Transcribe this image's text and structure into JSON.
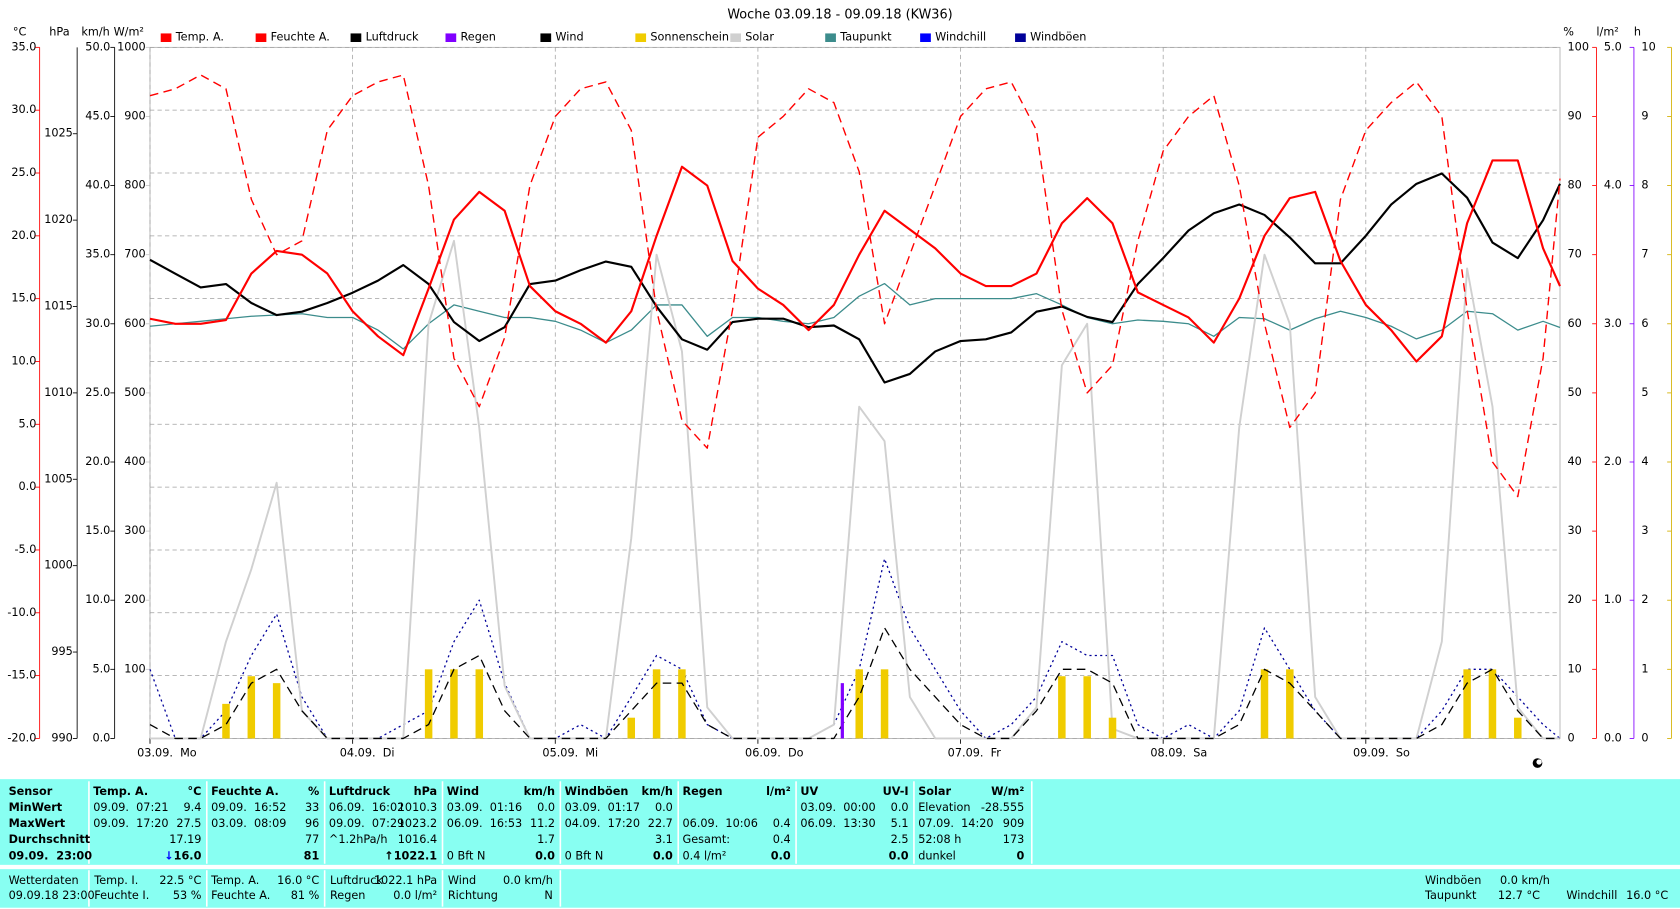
{
  "chart_data": {
    "type": "line",
    "title": "Woche 03.09.18 - 09.09.18 (KW36)",
    "xlim": [
      0,
      167
    ],
    "xticks": [
      {
        "value": 0,
        "label": "03.09.  Mo"
      },
      {
        "value": 24,
        "label": "04.09.  Di"
      },
      {
        "value": 48,
        "label": "05.09.  Mi"
      },
      {
        "value": 72,
        "label": "06.09.  Do"
      },
      {
        "value": 96,
        "label": "07.09.  Fr"
      },
      {
        "value": 120,
        "label": "08.09.  Sa"
      },
      {
        "value": 144,
        "label": "09.09.  So"
      }
    ],
    "grid": true,
    "grid_axis": 0,
    "axes": [
      {
        "unit": "°C",
        "color": "#ff0000",
        "side": "left",
        "lim": [
          -20,
          35
        ],
        "ticks": [
          {
            "value": -20,
            "label": "-20.0"
          },
          {
            "value": -15,
            "label": "-15.0"
          },
          {
            "value": -10,
            "label": "-10.0"
          },
          {
            "value": -5,
            "label": "-5.0"
          },
          {
            "value": 0,
            "label": "0.0"
          },
          {
            "value": 5,
            "label": "5.0"
          },
          {
            "value": 10,
            "label": "10.0"
          },
          {
            "value": 15,
            "label": "15.0"
          },
          {
            "value": 20,
            "label": "20.0"
          },
          {
            "value": 25,
            "label": "25.0"
          },
          {
            "value": 30,
            "label": "30.0"
          },
          {
            "value": 35,
            "label": "35.0"
          }
        ]
      },
      {
        "unit": "hPa",
        "color": "#000000",
        "side": "left",
        "lim": [
          990,
          1030
        ],
        "ticks": [
          990,
          995,
          1000,
          1005,
          1010,
          1015,
          1020,
          1025
        ]
      },
      {
        "unit": "km/h",
        "color": "#000000",
        "side": "left",
        "lim": [
          0,
          50
        ],
        "ticks": [
          {
            "value": 0,
            "label": "0.0"
          },
          {
            "value": 5,
            "label": "5.0"
          },
          {
            "value": 10,
            "label": "10.0"
          },
          {
            "value": 15,
            "label": "15.0"
          },
          {
            "value": 20,
            "label": "20.0"
          },
          {
            "value": 25,
            "label": "25.0"
          },
          {
            "value": 30,
            "label": "30.0"
          },
          {
            "value": 35,
            "label": "35.0"
          },
          {
            "value": 40,
            "label": "40.0"
          },
          {
            "value": 45,
            "label": "45.0"
          },
          {
            "value": 50,
            "label": "50.0"
          }
        ]
      },
      {
        "unit": "W/m²",
        "color": "#c8c8c8",
        "side": "left",
        "lim": [
          0,
          1000
        ],
        "ticks": [
          100,
          200,
          300,
          400,
          500,
          600,
          700,
          800,
          900,
          1000
        ]
      },
      {
        "unit": "%",
        "color": "#ff0000",
        "side": "right",
        "lim": [
          0,
          100
        ],
        "ticks": [
          0,
          10,
          20,
          30,
          40,
          50,
          60,
          70,
          80,
          90,
          100
        ]
      },
      {
        "unit": "l/m²",
        "color": "#8000ff",
        "side": "right",
        "lim": [
          0,
          5
        ],
        "ticks": [
          {
            "value": 0,
            "label": "0.0"
          },
          {
            "value": 1,
            "label": "1.0"
          },
          {
            "value": 2,
            "label": "2.0"
          },
          {
            "value": 3,
            "label": "3.0"
          },
          {
            "value": 4,
            "label": "4.0"
          },
          {
            "value": 5,
            "label": "5.0"
          }
        ]
      },
      {
        "unit": "h",
        "color": "#d4b000",
        "side": "right",
        "lim": [
          0,
          10
        ],
        "ticks": [
          0,
          1,
          2,
          3,
          4,
          5,
          6,
          7,
          8,
          9,
          10
        ]
      }
    ],
    "x": [
      0,
      3,
      6,
      9,
      12,
      15,
      18,
      21,
      24,
      27,
      30,
      33,
      36,
      39,
      42,
      45,
      48,
      51,
      54,
      57,
      60,
      63,
      66,
      69,
      72,
      75,
      78,
      81,
      84,
      87,
      90,
      93,
      96,
      99,
      102,
      105,
      108,
      111,
      114,
      117,
      120,
      123,
      126,
      129,
      132,
      135,
      138,
      141,
      144,
      147,
      150,
      153,
      156,
      159,
      162,
      165,
      167
    ],
    "series": [
      {
        "name": "Temp. A.",
        "color": "#ff0000",
        "axis": 0,
        "style": "solid",
        "values": [
          13.4,
          13.0,
          13.0,
          13.3,
          17.0,
          18.8,
          18.5,
          17.0,
          14.0,
          12.0,
          10.5,
          15.8,
          21.3,
          23.5,
          22.0,
          16.0,
          14.0,
          13.0,
          11.5,
          14.0,
          20.0,
          25.5,
          24.0,
          18.0,
          15.8,
          14.5,
          12.5,
          14.5,
          18.5,
          22.0,
          20.5,
          19.0,
          17.0,
          16.0,
          16.0,
          17.0,
          21.0,
          23.0,
          21.0,
          15.5,
          14.5,
          13.5,
          11.5,
          15.0,
          20.0,
          23.0,
          23.5,
          18.0,
          14.5,
          12.5,
          10.0,
          12.0,
          21.0,
          26.0,
          26.0,
          19.0,
          16.0
        ]
      },
      {
        "name": "Feuchte A.",
        "color": "#ff0000",
        "axis": 4,
        "style": "dashed",
        "values": [
          93,
          94,
          96,
          94,
          78,
          70,
          72,
          88,
          93,
          95,
          96,
          80,
          55,
          48,
          58,
          80,
          90,
          94,
          95,
          88,
          62,
          46,
          42,
          62,
          87,
          90,
          94,
          92,
          82,
          60,
          70,
          80,
          90,
          94,
          95,
          88,
          62,
          50,
          54,
          72,
          85,
          90,
          93,
          80,
          60,
          45,
          50,
          78,
          88,
          92,
          95,
          90,
          62,
          40,
          35,
          55,
          81
        ]
      },
      {
        "name": "Luftdruck",
        "color": "#000000",
        "axis": 1,
        "style": "solid",
        "values": [
          1017.7,
          1016.9,
          1016.1,
          1016.3,
          1015.2,
          1014.5,
          1014.7,
          1015.2,
          1015.8,
          1016.5,
          1017.4,
          1016.3,
          1014.1,
          1013.0,
          1013.8,
          1016.3,
          1016.5,
          1017.1,
          1017.6,
          1017.3,
          1015.0,
          1013.1,
          1012.5,
          1014.1,
          1014.3,
          1014.3,
          1013.8,
          1013.9,
          1013.1,
          1010.6,
          1011.1,
          1012.4,
          1013.0,
          1013.1,
          1013.5,
          1014.7,
          1015.0,
          1014.4,
          1014.1,
          1016.3,
          1017.8,
          1019.4,
          1020.4,
          1020.9,
          1020.3,
          1019.0,
          1017.5,
          1017.5,
          1019.1,
          1020.9,
          1022.1,
          1022.7,
          1021.3,
          1018.7,
          1017.8,
          1020.0,
          1022.1
        ]
      },
      {
        "name": "Regen",
        "color": "#8000ff",
        "axis": 5,
        "style": "bars",
        "x": [
          82
        ],
        "values": [
          0.4
        ]
      },
      {
        "name": "Wind",
        "color": "#000000",
        "axis": 2,
        "style": "dashed",
        "values": [
          1,
          0,
          0,
          1,
          4,
          5,
          2,
          0,
          0,
          0,
          0,
          1,
          5,
          6,
          2,
          0,
          0,
          0,
          0,
          2,
          4,
          4,
          1,
          0,
          0,
          0,
          0,
          0,
          3,
          8,
          5,
          3,
          1,
          0,
          0,
          2,
          5,
          5,
          4,
          0,
          0,
          0,
          0,
          1,
          5,
          4,
          2,
          0,
          0,
          0,
          0,
          1,
          4,
          5,
          2,
          0,
          0
        ]
      },
      {
        "name": "Sonnenschein",
        "color": "#f0cc00",
        "axis": 6,
        "style": "bars",
        "values": [
          0,
          0,
          0,
          0.5,
          0.9,
          0.8,
          0,
          0,
          0,
          0,
          0,
          1,
          1,
          1,
          0,
          0,
          0,
          0,
          0,
          0.3,
          1,
          1,
          0,
          0,
          0,
          0,
          0,
          0,
          1,
          1,
          0,
          0,
          0,
          0,
          0,
          0,
          0.9,
          0.9,
          0.3,
          0,
          0,
          0,
          0,
          0,
          1,
          1,
          0,
          0,
          0,
          0,
          0,
          0,
          1,
          1,
          0.3,
          0,
          0
        ]
      },
      {
        "name": "Solar",
        "color": "#d0d0d0",
        "axis": 3,
        "style": "solid",
        "values": [
          0,
          0,
          0,
          140,
          245,
          370,
          40,
          0,
          0,
          0,
          0,
          600,
          720,
          450,
          76,
          0,
          0,
          0,
          0,
          290,
          700,
          560,
          45,
          0,
          0,
          0,
          0,
          20,
          480,
          430,
          60,
          0,
          0,
          0,
          0,
          45,
          540,
          600,
          14,
          0,
          0,
          0,
          0,
          450,
          700,
          600,
          60,
          0,
          0,
          0,
          0,
          140,
          680,
          480,
          45,
          0,
          0
        ]
      },
      {
        "name": "Taupunkt",
        "color": "#3c8c8c",
        "axis": 0,
        "style": "solid",
        "values": [
          12.8,
          13.0,
          13.2,
          13.4,
          13.6,
          13.7,
          13.8,
          13.5,
          13.5,
          12.5,
          11.0,
          13.0,
          14.5,
          14.0,
          13.5,
          13.5,
          13.2,
          12.5,
          11.5,
          12.5,
          14.5,
          14.5,
          12.0,
          13.5,
          13.5,
          13.2,
          13.0,
          13.5,
          15.2,
          16.2,
          14.5,
          15.0,
          15.0,
          15.0,
          15.0,
          15.4,
          14.5,
          13.5,
          13.0,
          13.3,
          13.2,
          13.0,
          12.0,
          13.5,
          13.4,
          12.5,
          13.4,
          14.0,
          13.5,
          12.8,
          11.8,
          12.5,
          14.0,
          13.8,
          12.5,
          13.2,
          12.7
        ]
      },
      {
        "name": "Windchill",
        "color": "#0000ff",
        "axis": 0,
        "style": "solid",
        "values": [
          13.4,
          13.0,
          13.0,
          13.3,
          17.0,
          18.8,
          18.5,
          17.0,
          14.0,
          12.0,
          10.5,
          15.8,
          21.3,
          23.5,
          22.0,
          16.0,
          14.0,
          13.0,
          11.5,
          14.0,
          20.0,
          25.5,
          24.0,
          18.0,
          15.8,
          14.5,
          12.5,
          14.5,
          18.5,
          22.0,
          20.5,
          19.0,
          17.0,
          16.0,
          16.0,
          17.0,
          21.0,
          23.0,
          21.0,
          15.5,
          14.5,
          13.5,
          11.5,
          15.0,
          20.0,
          23.0,
          23.5,
          18.0,
          14.5,
          12.5,
          10.0,
          12.0,
          21.0,
          26.0,
          26.0,
          19.0,
          16.0
        ]
      },
      {
        "name": "Windböen",
        "color": "#000099",
        "axis": 2,
        "style": "dotted",
        "values": [
          5,
          0,
          0,
          2,
          6,
          9,
          3,
          0,
          0,
          0,
          1,
          2,
          7,
          10,
          4,
          0,
          0,
          1,
          0,
          3,
          6,
          5,
          1,
          0,
          0,
          0,
          0,
          1,
          5,
          13,
          8,
          5,
          2,
          0,
          1,
          3,
          7,
          6,
          6,
          1,
          0,
          1,
          0,
          2,
          8,
          5,
          2,
          0,
          0,
          0,
          0,
          2,
          5,
          5,
          3,
          1,
          0
        ]
      }
    ]
  },
  "table": {
    "row_labels": {
      "title": "Sensor",
      "rows": [
        "MinWert",
        "MaxWert",
        "Durchschnitt",
        "09.09.  23:00"
      ]
    },
    "columns": [
      {
        "title": "Temp. A.",
        "unit": "°C",
        "rows": [
          {
            "label": "09.09.  07:21",
            "value": "9.4"
          },
          {
            "label": "09.09.  17:20",
            "value": "27.5"
          },
          {
            "value": "17.19"
          },
          {
            "trend": "↓",
            "value": "16.0"
          }
        ]
      },
      {
        "title": "Feuchte A.",
        "unit": "%",
        "rows": [
          {
            "label": "09.09.  16:52",
            "value": "33"
          },
          {
            "label": "03.09.  08:09",
            "value": "96"
          },
          {
            "value": "77"
          },
          {
            "value": "81"
          }
        ]
      },
      {
        "title": "Luftdruck",
        "unit": "hPa",
        "rows": [
          {
            "label": "06.09.  16:02",
            "value": "1010.3"
          },
          {
            "label": "09.09.  07:29",
            "value": "1023.2"
          },
          {
            "label": "^1.2hPa/h",
            "value": "1016.4"
          },
          {
            "trend": "↑",
            "value": "1022.1"
          }
        ]
      },
      {
        "title": "Wind",
        "unit": "km/h",
        "rows": [
          {
            "label": "03.09.  01:16",
            "value": "0.0"
          },
          {
            "label": "06.09.  16:53",
            "value": "11.2"
          },
          {
            "value": "1.7"
          },
          {
            "label": "0 Bft N",
            "value": "0.0"
          }
        ]
      },
      {
        "title": "Windböen",
        "unit": "km/h",
        "rows": [
          {
            "label": "03.09.  01:17",
            "value": "0.0"
          },
          {
            "label": "04.09.  17:20",
            "value": "22.7"
          },
          {
            "value": "3.1"
          },
          {
            "label": "0 Bft N",
            "value": "0.0"
          }
        ]
      },
      {
        "title": "Regen",
        "unit": "l/m²",
        "rows": [
          null,
          {
            "label": "06.09.  10:06",
            "value": "0.4"
          },
          {
            "label": "Gesamt:",
            "value": "0.4"
          },
          {
            "label": "0.4 l/m²",
            "value": "0.0"
          }
        ]
      },
      {
        "title": "UV",
        "unit": "UV-I",
        "rows": [
          {
            "label": "03.09.  00:00",
            "value": "0.0"
          },
          {
            "label": "06.09.  13:30",
            "value": "5.1"
          },
          {
            "value": "2.5"
          },
          {
            "value": "0.0"
          }
        ]
      },
      {
        "title": "Solar",
        "unit": "W/m²",
        "rows": [
          {
            "label": "Elevation",
            "value": "-28.555"
          },
          {
            "label": "07.09.  14:20",
            "value": "909"
          },
          {
            "label": "52:08 h",
            "value": "173"
          },
          {
            "label": "dunkel",
            "value": "0"
          }
        ]
      }
    ]
  },
  "status": {
    "cells": [
      {
        "top": {
          "label": "Wetterdaten"
        },
        "bottom": {
          "label": "09.09.18 23:00"
        }
      },
      {
        "top": {
          "label": "Temp. I.",
          "value": "22.5 °C"
        },
        "bottom": {
          "label": "Feuchte I.",
          "value": "53 %"
        }
      },
      {
        "top": {
          "label": "Temp. A.",
          "value": "16.0 °C"
        },
        "bottom": {
          "label": "Feuchte A.",
          "value": "81 %"
        }
      },
      {
        "top": {
          "label": "Luftdruck",
          "value": "1022.1 hPa"
        },
        "bottom": {
          "label": "Regen",
          "value": "0.0 l/m²"
        }
      },
      {
        "top": {
          "label": "Wind",
          "value": "0.0 km/h"
        },
        "bottom": {
          "label": "Richtung",
          "value": "N"
        }
      }
    ],
    "right": [
      {
        "label": "Windböen",
        "value": "0.0 km/h"
      },
      {
        "label": "Taupunkt",
        "value": "12.7 °C"
      },
      {
        "label": "Windchill",
        "value": "16.0 °C"
      }
    ]
  }
}
